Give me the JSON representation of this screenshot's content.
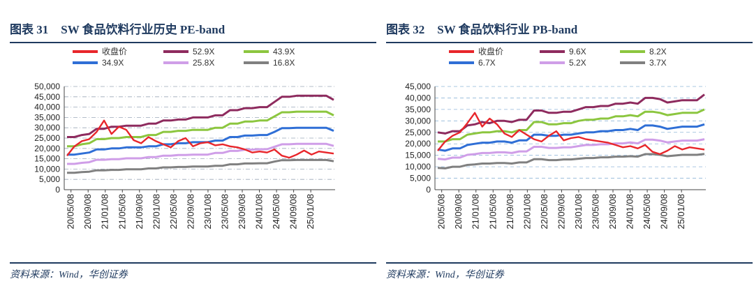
{
  "panels": [
    {
      "title_num": "图表 31",
      "title_text": "SW 食品饮料行业历史 PE-band",
      "source": "资料来源：Wind，华创证券"
    },
    {
      "title_num": "图表 32",
      "title_text": "SW 食品饮料行业 PB-band",
      "source": "资料来源：Wind，华创证券"
    }
  ],
  "chart_data": [
    {
      "type": "line",
      "title": "SW 食品饮料行业历史 PE-band",
      "ylim": [
        0,
        50000
      ],
      "yticks": [
        "0",
        "5,000",
        "10,000",
        "15,000",
        "20,000",
        "25,000",
        "30,000",
        "35,000",
        "40,000",
        "45,000",
        "50,000"
      ],
      "x_ticks": [
        "20/05/08",
        "20/09/08",
        "21/01/08",
        "21/05/08",
        "21/09/08",
        "22/01/08",
        "22/05/08",
        "22/09/08",
        "23/01/08",
        "23/05/08",
        "23/09/08",
        "24/01/08",
        "24/05/08",
        "24/09/08",
        "25/01/08"
      ],
      "legend": [
        "收盘价",
        "52.9X",
        "43.9X",
        "34.9X",
        "25.8X",
        "16.8X"
      ],
      "series": [
        {
          "name": "收盘价",
          "color": "#e8262b",
          "values": [
            16500,
            21000,
            23500,
            24500,
            28000,
            33500,
            27000,
            30500,
            29000,
            24000,
            22500,
            25500,
            23500,
            22000,
            20500,
            23500,
            25000,
            21000,
            22500,
            23000,
            21500,
            22000,
            21000,
            20500,
            19500,
            18000,
            18500,
            18000,
            19500,
            16500,
            15500,
            17000,
            19000,
            17000,
            18500,
            18000,
            17500
          ]
        },
        {
          "name": "52.9X",
          "color": "#8e2b5e",
          "values": [
            25500,
            25500,
            26500,
            27000,
            29500,
            29500,
            30500,
            30500,
            31000,
            31000,
            31000,
            32000,
            32000,
            33500,
            33500,
            34000,
            34000,
            35000,
            35000,
            35000,
            36000,
            36000,
            38500,
            38500,
            39500,
            39500,
            40000,
            40000,
            42500,
            45000,
            45000,
            45500,
            45500,
            45500,
            45500,
            45500,
            43500
          ]
        },
        {
          "name": "43.9X",
          "color": "#8cc63f",
          "values": [
            21000,
            21000,
            22000,
            22500,
            24500,
            24500,
            25000,
            25000,
            25500,
            25500,
            25500,
            26500,
            26500,
            28000,
            28000,
            28500,
            28500,
            29000,
            29000,
            29000,
            30000,
            30000,
            32000,
            32000,
            33000,
            33000,
            33500,
            33500,
            35500,
            37500,
            37500,
            37800,
            37800,
            37800,
            37800,
            37800,
            36000
          ]
        },
        {
          "name": "34.9X",
          "color": "#2f6fd6",
          "values": [
            17000,
            17000,
            17500,
            18000,
            19500,
            19500,
            20000,
            20000,
            20500,
            20500,
            20500,
            21000,
            21000,
            22000,
            22000,
            22500,
            22500,
            23000,
            23000,
            23000,
            23800,
            23800,
            25500,
            25500,
            26200,
            26200,
            26500,
            26500,
            28000,
            29800,
            29800,
            30000,
            30000,
            30000,
            30000,
            30000,
            28500
          ]
        },
        {
          "name": "25.8X",
          "color": "#cf9ee8",
          "values": [
            12500,
            12500,
            13000,
            13300,
            14500,
            14500,
            14800,
            14800,
            15200,
            15200,
            15200,
            15800,
            15800,
            16500,
            16500,
            16800,
            16800,
            17000,
            17000,
            17000,
            17800,
            17800,
            18800,
            18800,
            19400,
            19400,
            19600,
            19600,
            20800,
            22000,
            22000,
            22200,
            22200,
            22200,
            22200,
            22200,
            21200
          ]
        },
        {
          "name": "16.8X",
          "color": "#808080",
          "values": [
            8200,
            8200,
            8500,
            8700,
            9400,
            9400,
            9600,
            9600,
            9900,
            9900,
            9900,
            10300,
            10300,
            10800,
            10800,
            11000,
            11000,
            11200,
            11200,
            11200,
            11600,
            11600,
            12300,
            12300,
            12700,
            12700,
            12800,
            12800,
            13600,
            14300,
            14300,
            14400,
            14400,
            14400,
            14400,
            14400,
            13800
          ]
        }
      ]
    },
    {
      "type": "line",
      "title": "SW 食品饮料行业 PB-band",
      "ylim": [
        0,
        45000
      ],
      "yticks": [
        "0",
        "5,000",
        "10,000",
        "15,000",
        "20,000",
        "25,000",
        "30,000",
        "35,000",
        "40,000",
        "45,000"
      ],
      "x_ticks": [
        "20/05/08",
        "20/09/08",
        "21/01/08",
        "21/05/08",
        "21/09/08",
        "22/01/08",
        "22/05/08",
        "22/09/08",
        "23/01/08",
        "23/05/08",
        "23/09/08",
        "24/01/08",
        "24/05/08",
        "24/09/08",
        "25/01/08"
      ],
      "legend": [
        "收盘价",
        "9.6X",
        "8.2X",
        "6.7X",
        "5.2X",
        "3.7X"
      ],
      "series": [
        {
          "name": "收盘价",
          "color": "#e8262b",
          "values": [
            17000,
            21000,
            23500,
            25000,
            29000,
            33500,
            27500,
            31000,
            28500,
            24500,
            23000,
            26000,
            24000,
            22000,
            21000,
            23500,
            25500,
            21500,
            22500,
            23000,
            22000,
            21500,
            21000,
            20500,
            19500,
            18500,
            19000,
            18000,
            19500,
            16500,
            15500,
            17000,
            19000,
            17500,
            18500,
            18000,
            17500
          ]
        },
        {
          "name": "9.6X",
          "color": "#8e2b5e",
          "values": [
            25000,
            24500,
            25500,
            25500,
            28000,
            28500,
            29500,
            29000,
            30000,
            30000,
            29500,
            30500,
            30500,
            34500,
            34500,
            33500,
            33500,
            34000,
            34000,
            35000,
            36000,
            36000,
            36500,
            36500,
            37500,
            37500,
            38000,
            37500,
            40000,
            40000,
            39500,
            38000,
            38500,
            39000,
            39000,
            39000,
            41500
          ]
        },
        {
          "name": "8.2X",
          "color": "#8cc63f",
          "values": [
            21000,
            21000,
            22000,
            22000,
            24000,
            24500,
            25000,
            25000,
            25500,
            25500,
            25000,
            26000,
            26000,
            29500,
            29500,
            28500,
            28500,
            29000,
            29000,
            30000,
            30500,
            30500,
            31000,
            31000,
            32000,
            32000,
            32500,
            32000,
            34000,
            34000,
            33500,
            32500,
            33000,
            33500,
            33500,
            33500,
            35000
          ]
        },
        {
          "name": "6.7X",
          "color": "#2f6fd6",
          "values": [
            17500,
            17000,
            18000,
            18000,
            19500,
            20000,
            20500,
            20500,
            21000,
            21000,
            20500,
            21500,
            21500,
            24000,
            24000,
            23500,
            23500,
            24000,
            24000,
            24500,
            25000,
            25000,
            25500,
            25500,
            26000,
            26000,
            26500,
            26000,
            28000,
            28000,
            27500,
            26500,
            27000,
            27500,
            27500,
            27500,
            28500
          ]
        },
        {
          "name": "5.2X",
          "color": "#cf9ee8",
          "values": [
            13500,
            13200,
            14000,
            14000,
            15200,
            15500,
            16000,
            16000,
            16300,
            16300,
            16000,
            16700,
            16700,
            18700,
            18700,
            18200,
            18200,
            18500,
            18500,
            19000,
            19500,
            19500,
            19800,
            19800,
            20200,
            20200,
            20600,
            20200,
            21800,
            21800,
            21400,
            20600,
            21000,
            21400,
            21400,
            21400,
            22000
          ]
        },
        {
          "name": "3.7X",
          "color": "#808080",
          "values": [
            9500,
            9300,
            10000,
            10000,
            10800,
            11000,
            11400,
            11400,
            11600,
            11600,
            11400,
            11900,
            11900,
            13300,
            13300,
            12900,
            12900,
            13200,
            13200,
            13500,
            13800,
            13800,
            14100,
            14100,
            14400,
            14400,
            14600,
            14400,
            15500,
            15500,
            15200,
            14600,
            14900,
            15200,
            15200,
            15200,
            15600
          ]
        }
      ]
    }
  ]
}
